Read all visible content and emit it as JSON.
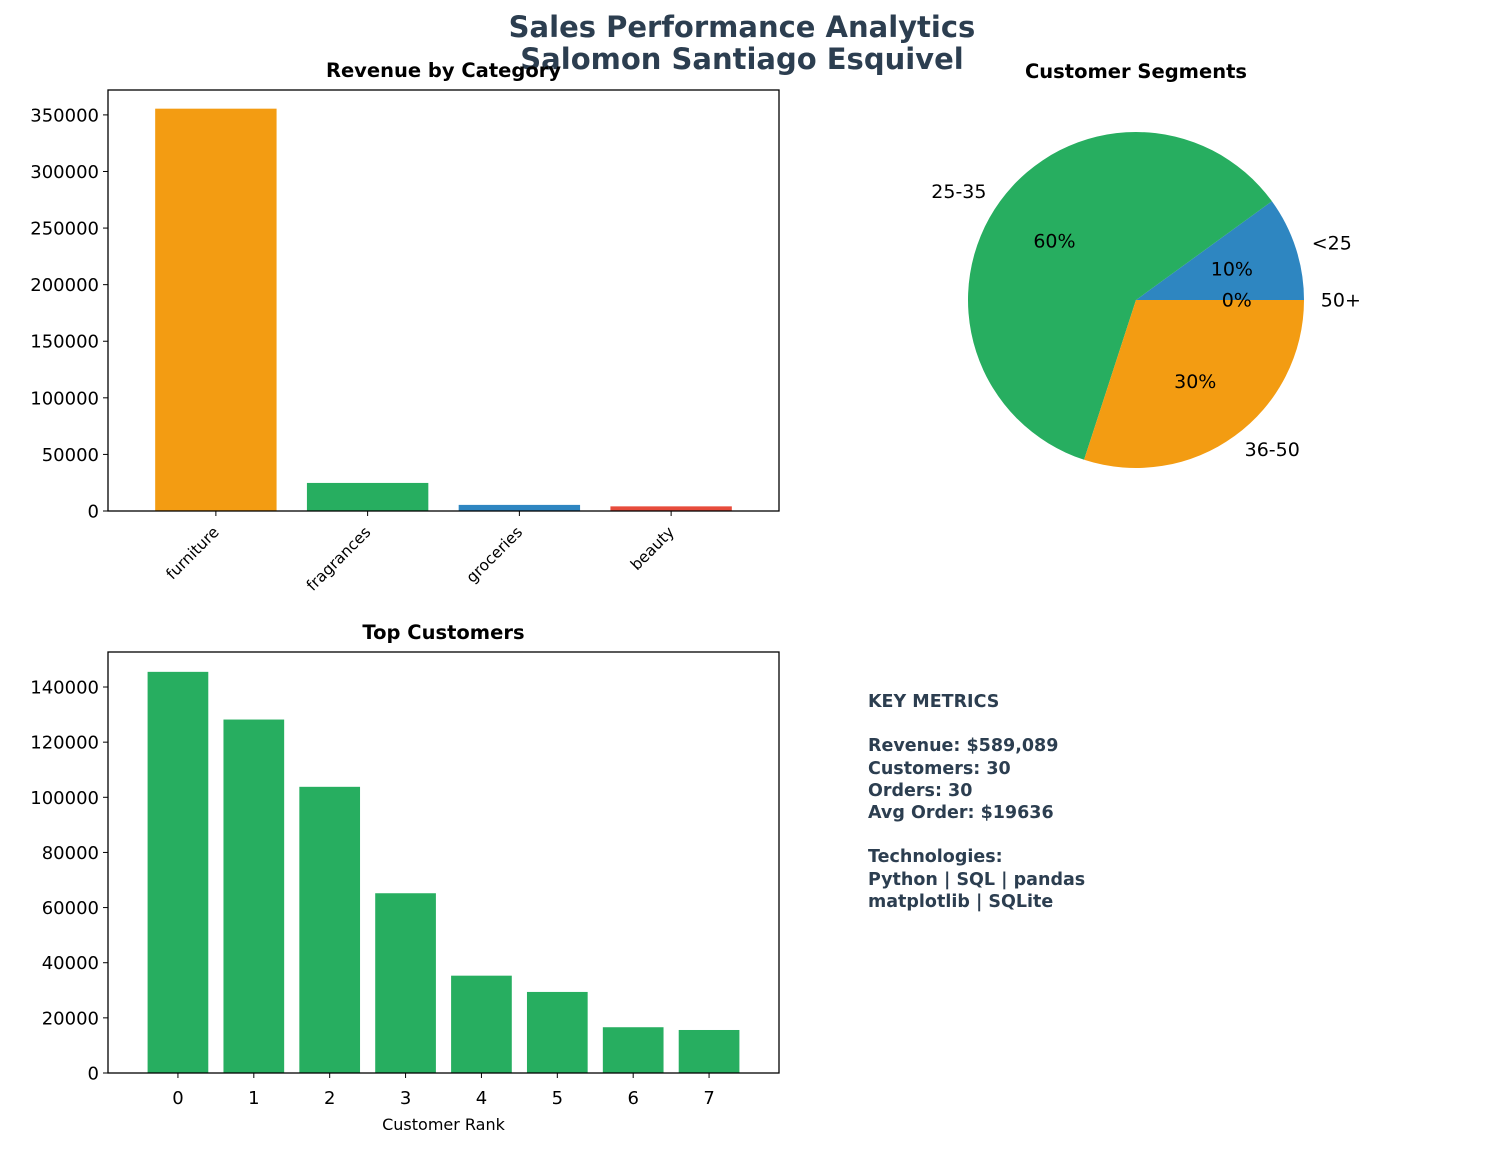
{
  "figure": {
    "title_line1": "Sales Performance Analytics",
    "title_line2": "Salomon Santiago Esquivel",
    "title_color": "#2c3e50"
  },
  "chart_data": [
    {
      "type": "bar",
      "title": "Revenue by Category",
      "categories": [
        "furniture",
        "fragrances",
        "groceries",
        "beauty"
      ],
      "values": [
        355500,
        24800,
        5400,
        4100
      ],
      "colors": [
        "#f39c12",
        "#27ae60",
        "#2e86c1",
        "#e74c3c"
      ],
      "ylim": [
        0,
        372000
      ],
      "yticks": [
        0,
        50000,
        100000,
        150000,
        200000,
        250000,
        300000,
        350000
      ],
      "xlabel": "",
      "ylabel": "",
      "grid": false
    },
    {
      "type": "pie",
      "title": "Customer Segments",
      "labels": [
        "<25",
        "25-35",
        "36-50",
        "50+"
      ],
      "values": [
        10,
        60,
        30,
        0
      ],
      "pct_labels": [
        "10%",
        "60%",
        "30%",
        "0%"
      ],
      "colors": [
        "#2e86c1",
        "#27ae60",
        "#f39c12",
        "#e74c3c"
      ]
    },
    {
      "type": "bar",
      "title": "Top Customers",
      "categories": [
        "0",
        "1",
        "2",
        "3",
        "4",
        "5",
        "6",
        "7"
      ],
      "values": [
        145500,
        128200,
        103800,
        65200,
        35300,
        29400,
        16600,
        15600
      ],
      "colors": [
        "#27ae60"
      ],
      "ylim": [
        0,
        152700
      ],
      "yticks": [
        0,
        20000,
        40000,
        60000,
        80000,
        100000,
        120000,
        140000
      ],
      "xlabel": "Customer Rank",
      "ylabel": "",
      "grid": false
    }
  ],
  "metrics": {
    "heading": "KEY METRICS",
    "revenue": "Revenue: $589,089",
    "customers": "Customers: 30",
    "orders": "Orders: 30",
    "avg_order": "Avg Order: $19636",
    "tech_heading": "Technologies:",
    "tech_line1": "Python | SQL | pandas",
    "tech_line2": "matplotlib | SQLite"
  }
}
